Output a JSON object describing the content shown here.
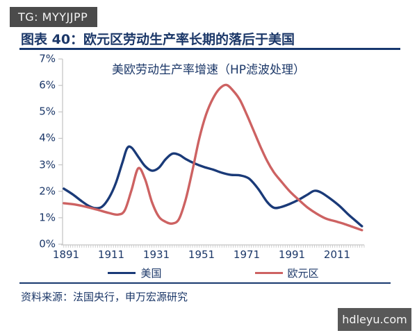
{
  "watermarks": {
    "top": "TG: MYYJJPP",
    "bottom": "hdleyu.com"
  },
  "figure": {
    "title": "图表 40：欧元区劳动生产率长期的落后于美国",
    "source": "资料来源：法国央行，申万宏源研究"
  },
  "chart_data": {
    "type": "line",
    "title": "美欧劳动生产率增速（HP滤波处理）",
    "xlabel": "",
    "ylabel": "",
    "xlim": [
      1889,
      2023
    ],
    "ylim": [
      0,
      7
    ],
    "grid": false,
    "legend_position": "bottom",
    "y_ticks": [
      "7%",
      "6%",
      "5%",
      "4%",
      "3%",
      "2%",
      "1%",
      "0%"
    ],
    "y_tick_values": [
      7,
      6,
      5,
      4,
      3,
      2,
      1,
      0
    ],
    "x_ticks": [
      "1891",
      "1911",
      "1931",
      "1951",
      "1971",
      "1991",
      "2011"
    ],
    "axis_color": "#c5c5c5",
    "text_color": "#1b3768",
    "series": [
      {
        "name": "美国",
        "color": "#1a3a78",
        "points": [
          [
            1890,
            2.1
          ],
          [
            1894,
            1.88
          ],
          [
            1898,
            1.62
          ],
          [
            1901,
            1.45
          ],
          [
            1904,
            1.36
          ],
          [
            1907,
            1.42
          ],
          [
            1910,
            1.75
          ],
          [
            1913,
            2.3
          ],
          [
            1916,
            3.1
          ],
          [
            1918,
            3.62
          ],
          [
            1920,
            3.65
          ],
          [
            1923,
            3.3
          ],
          [
            1926,
            2.95
          ],
          [
            1929,
            2.78
          ],
          [
            1932,
            2.88
          ],
          [
            1935,
            3.2
          ],
          [
            1938,
            3.42
          ],
          [
            1941,
            3.38
          ],
          [
            1944,
            3.22
          ],
          [
            1948,
            3.05
          ],
          [
            1952,
            2.92
          ],
          [
            1956,
            2.82
          ],
          [
            1960,
            2.7
          ],
          [
            1964,
            2.62
          ],
          [
            1968,
            2.6
          ],
          [
            1972,
            2.48
          ],
          [
            1976,
            2.1
          ],
          [
            1980,
            1.6
          ],
          [
            1983,
            1.38
          ],
          [
            1986,
            1.4
          ],
          [
            1990,
            1.52
          ],
          [
            1994,
            1.68
          ],
          [
            1998,
            1.88
          ],
          [
            2001,
            2.02
          ],
          [
            2004,
            1.95
          ],
          [
            2008,
            1.72
          ],
          [
            2012,
            1.45
          ],
          [
            2016,
            1.12
          ],
          [
            2019,
            0.9
          ],
          [
            2022,
            0.68
          ]
        ]
      },
      {
        "name": "欧元区",
        "color": "#cd6262",
        "points": [
          [
            1890,
            1.55
          ],
          [
            1895,
            1.5
          ],
          [
            1900,
            1.41
          ],
          [
            1905,
            1.3
          ],
          [
            1910,
            1.18
          ],
          [
            1914,
            1.12
          ],
          [
            1917,
            1.28
          ],
          [
            1920,
            2.05
          ],
          [
            1923,
            2.87
          ],
          [
            1926,
            2.45
          ],
          [
            1929,
            1.6
          ],
          [
            1932,
            1.05
          ],
          [
            1935,
            0.85
          ],
          [
            1938,
            0.78
          ],
          [
            1941,
            0.95
          ],
          [
            1944,
            1.7
          ],
          [
            1947,
            2.8
          ],
          [
            1950,
            4.0
          ],
          [
            1953,
            4.9
          ],
          [
            1956,
            5.5
          ],
          [
            1959,
            5.88
          ],
          [
            1962,
            6.02
          ],
          [
            1965,
            5.8
          ],
          [
            1968,
            5.45
          ],
          [
            1971,
            4.9
          ],
          [
            1974,
            4.3
          ],
          [
            1977,
            3.7
          ],
          [
            1980,
            3.15
          ],
          [
            1983,
            2.72
          ],
          [
            1986,
            2.4
          ],
          [
            1990,
            2.0
          ],
          [
            1994,
            1.68
          ],
          [
            1998,
            1.38
          ],
          [
            2002,
            1.15
          ],
          [
            2006,
            0.97
          ],
          [
            2010,
            0.87
          ],
          [
            2014,
            0.77
          ],
          [
            2018,
            0.65
          ],
          [
            2022,
            0.53
          ]
        ]
      }
    ]
  }
}
